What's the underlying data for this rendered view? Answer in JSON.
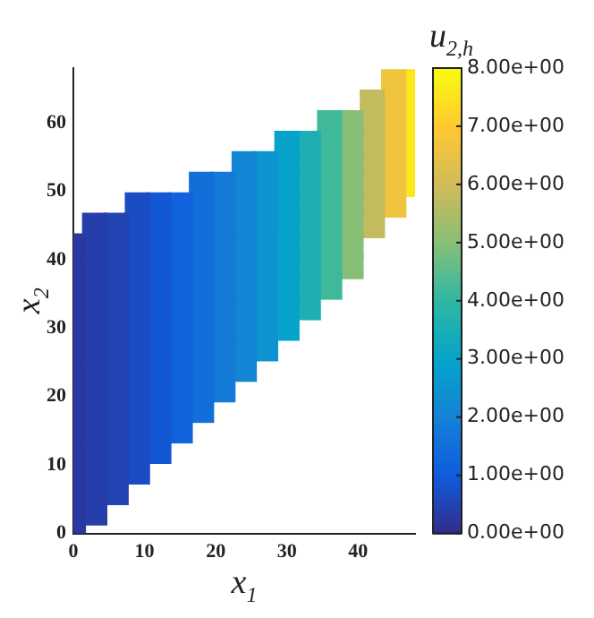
{
  "chart_data": {
    "type": "scatter",
    "xlabel": "x$_{1}$",
    "ylabel": "x$_{2}$",
    "clabel": "u$_{2,h}$",
    "marker": "square",
    "xlim": [
      0,
      48
    ],
    "ylim": [
      0,
      68
    ],
    "xticks": [
      0,
      10,
      20,
      30,
      40
    ],
    "yticks": [
      0,
      10,
      20,
      30,
      40,
      50,
      60
    ],
    "clim": [
      0,
      8
    ],
    "cticks": [
      {
        "value": 0,
        "label": "0.00e+00"
      },
      {
        "value": 1,
        "label": "1.00e+00"
      },
      {
        "value": 2,
        "label": "2.00e+00"
      },
      {
        "value": 3,
        "label": "3.00e+00"
      },
      {
        "value": 4,
        "label": "4.00e+00"
      },
      {
        "value": 5,
        "label": "5.00e+00"
      },
      {
        "value": 6,
        "label": "6.00e+00"
      },
      {
        "value": 7,
        "label": "7.00e+00"
      },
      {
        "value": 8,
        "label": "8.00e+00"
      }
    ],
    "series": [
      {
        "x": [
          0,
          0,
          0,
          0,
          0,
          0,
          0,
          0,
          0,
          0,
          0,
          0,
          0,
          0,
          0
        ],
        "values": [
          0,
          3,
          6,
          9,
          12,
          15,
          18,
          21,
          24,
          27,
          30,
          33,
          36,
          39,
          42
        ],
        "cvalues": [
          0.3,
          0.3,
          0.3,
          0.3,
          0.3,
          0.3,
          0.3,
          0.3,
          0.3,
          0.3,
          0.3,
          0.3,
          0.3,
          0.3,
          0.3
        ]
      },
      {
        "x": [
          3,
          3,
          3,
          3,
          3,
          3,
          3,
          3,
          3,
          3,
          3,
          3,
          3,
          3,
          3
        ],
        "values": [
          3,
          6,
          9,
          12,
          15,
          18,
          21,
          24,
          27,
          30,
          33,
          36,
          39,
          42,
          45
        ],
        "cvalues": [
          0.4,
          0.4,
          0.4,
          0.4,
          0.4,
          0.4,
          0.4,
          0.4,
          0.4,
          0.4,
          0.4,
          0.4,
          0.4,
          0.4,
          0.4
        ]
      },
      {
        "x": [
          6,
          6,
          6,
          6,
          6,
          6,
          6,
          6,
          6,
          6,
          6,
          6,
          6,
          6
        ],
        "values": [
          6,
          9,
          12,
          15,
          18,
          21,
          24,
          27,
          30,
          33,
          36,
          39,
          42,
          45
        ],
        "cvalues": [
          0.5,
          0.5,
          0.5,
          0.5,
          0.5,
          0.5,
          0.5,
          0.5,
          0.5,
          0.5,
          0.5,
          0.5,
          0.5,
          0.5
        ]
      },
      {
        "x": [
          9,
          9,
          9,
          9,
          9,
          9,
          9,
          9,
          9,
          9,
          9,
          9,
          9,
          9
        ],
        "values": [
          9,
          12,
          15,
          18,
          21,
          24,
          27,
          30,
          33,
          36,
          39,
          42,
          45,
          48
        ],
        "cvalues": [
          0.7,
          0.7,
          0.7,
          0.7,
          0.7,
          0.7,
          0.7,
          0.7,
          0.7,
          0.7,
          0.7,
          0.7,
          0.7,
          0.7
        ]
      },
      {
        "x": [
          12,
          12,
          12,
          12,
          12,
          12,
          12,
          12,
          12,
          12,
          12,
          12,
          12
        ],
        "values": [
          12,
          15,
          18,
          21,
          24,
          27,
          30,
          33,
          36,
          39,
          42,
          45,
          48
        ],
        "cvalues": [
          0.9,
          0.9,
          0.9,
          0.9,
          0.9,
          0.9,
          0.9,
          0.9,
          0.9,
          0.9,
          0.9,
          0.9,
          0.9
        ]
      },
      {
        "x": [
          15,
          15,
          15,
          15,
          15,
          15,
          15,
          15,
          15,
          15,
          15,
          15
        ],
        "values": [
          15,
          18,
          21,
          24,
          27,
          30,
          33,
          36,
          39,
          42,
          45,
          48
        ],
        "cvalues": [
          1.2,
          1.2,
          1.2,
          1.2,
          1.2,
          1.2,
          1.2,
          1.2,
          1.2,
          1.2,
          1.2,
          1.2
        ]
      },
      {
        "x": [
          18,
          18,
          18,
          18,
          18,
          18,
          18,
          18,
          18,
          18,
          18,
          18
        ],
        "values": [
          18,
          21,
          24,
          27,
          30,
          33,
          36,
          39,
          42,
          45,
          48,
          51
        ],
        "cvalues": [
          1.5,
          1.5,
          1.5,
          1.5,
          1.5,
          1.5,
          1.5,
          1.5,
          1.5,
          1.5,
          1.5,
          1.5
        ]
      },
      {
        "x": [
          21,
          21,
          21,
          21,
          21,
          21,
          21,
          21,
          21,
          21,
          21
        ],
        "values": [
          21,
          24,
          27,
          30,
          33,
          36,
          39,
          42,
          45,
          48,
          51
        ],
        "cvalues": [
          1.8,
          1.8,
          1.8,
          1.8,
          1.8,
          1.8,
          1.8,
          1.8,
          1.8,
          1.8,
          1.8
        ]
      },
      {
        "x": [
          24,
          24,
          24,
          24,
          24,
          24,
          24,
          24,
          24,
          24,
          24
        ],
        "values": [
          24,
          27,
          30,
          33,
          36,
          39,
          42,
          45,
          48,
          51,
          54
        ],
        "cvalues": [
          2.1,
          2.1,
          2.1,
          2.1,
          2.1,
          2.1,
          2.1,
          2.1,
          2.1,
          2.1,
          2.1
        ]
      },
      {
        "x": [
          27,
          27,
          27,
          27,
          27,
          27,
          27,
          27,
          27,
          27
        ],
        "values": [
          27,
          30,
          33,
          36,
          39,
          42,
          45,
          48,
          51,
          54
        ],
        "cvalues": [
          2.5,
          2.5,
          2.5,
          2.5,
          2.5,
          2.5,
          2.5,
          2.5,
          2.5,
          2.5
        ]
      },
      {
        "x": [
          30,
          30,
          30,
          30,
          30,
          30,
          30,
          30,
          30,
          30
        ],
        "values": [
          30,
          33,
          36,
          39,
          42,
          45,
          48,
          51,
          54,
          57
        ],
        "cvalues": [
          3,
          3,
          3,
          3,
          3,
          3,
          3,
          3,
          3,
          3
        ]
      },
      {
        "x": [
          33,
          33,
          33,
          33,
          33,
          33,
          33,
          33,
          33
        ],
        "values": [
          33,
          36,
          39,
          42,
          45,
          48,
          51,
          54,
          57
        ],
        "cvalues": [
          3.6,
          3.6,
          3.6,
          3.6,
          3.6,
          3.6,
          3.6,
          3.6,
          3.6
        ]
      },
      {
        "x": [
          36,
          36,
          36,
          36,
          36,
          36,
          36,
          36,
          36
        ],
        "values": [
          36,
          39,
          42,
          45,
          48,
          51,
          54,
          57,
          60
        ],
        "cvalues": [
          4.2,
          4.2,
          4.2,
          4.2,
          4.2,
          4.2,
          4.2,
          4.2,
          4.2
        ]
      },
      {
        "x": [
          39,
          39,
          39,
          39,
          39,
          39,
          39,
          39
        ],
        "values": [
          39,
          42,
          45,
          48,
          51,
          54,
          57,
          60
        ],
        "cvalues": [
          5,
          5,
          5,
          5,
          5,
          5,
          5,
          5
        ]
      },
      {
        "x": [
          42,
          42,
          42,
          42,
          42,
          42,
          42
        ],
        "values": [
          45,
          48,
          51,
          54,
          57,
          60,
          63
        ],
        "cvalues": [
          5.8,
          5.8,
          5.8,
          5.8,
          5.8,
          5.8,
          5.8
        ]
      },
      {
        "x": [
          45,
          45,
          45,
          45,
          45,
          45,
          45
        ],
        "values": [
          48,
          51,
          54,
          57,
          60,
          63,
          66
        ],
        "cvalues": [
          6.7,
          6.7,
          6.7,
          6.7,
          6.7,
          6.7,
          6.7
        ]
      },
      {
        "x": [
          48,
          48,
          48,
          48,
          48,
          48
        ],
        "values": [
          51,
          54,
          57,
          60,
          63,
          66
        ],
        "cvalues": [
          7.6,
          7.6,
          7.6,
          7.6,
          7.6,
          7.6
        ]
      }
    ]
  }
}
